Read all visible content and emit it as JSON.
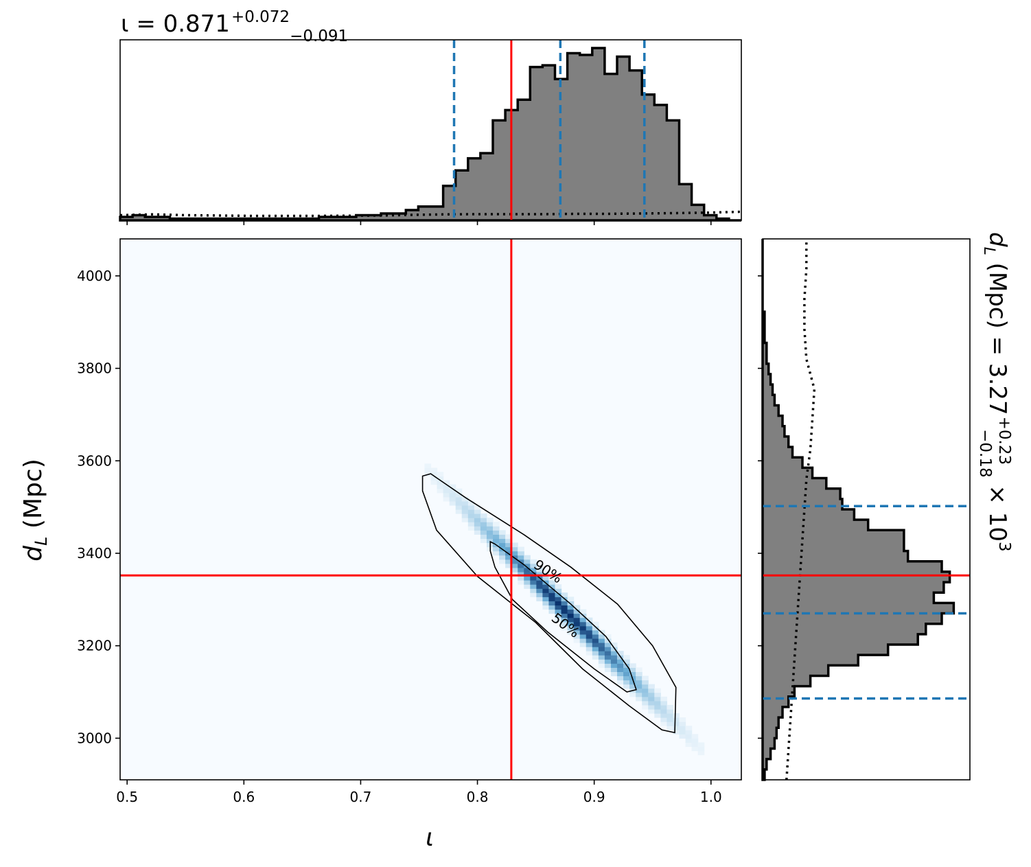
{
  "colors": {
    "truth": "#ff0000",
    "quantile": "#1f77b4",
    "hist_fill": "#808080",
    "hist_edge": "#000000",
    "density_low": "#f7fbff",
    "density_high": "#08306b"
  },
  "titles": {
    "iota": {
      "prefix": "ι = 0.871",
      "sup": "+0.072",
      "sub": "−0.091"
    },
    "dL": {
      "prefix": "d",
      "prefix_sub": "L",
      "mid": " (Mpc) = 3.27",
      "sup": "+0.23",
      "sub": "−0.18",
      "times": " × 10",
      "exp": "3"
    }
  },
  "axes": {
    "xlabel": "ι",
    "ylabel_main": "d",
    "ylabel_sub": "L",
    "ylabel_unit": " (Mpc)"
  },
  "contour_labels": {
    "c90": "90%",
    "c50": "50%"
  },
  "chart_data": [
    {
      "type": "histogram",
      "panel": "top-marginal",
      "title": "ι = 0.871 (+0.072 / −0.091)",
      "xlim": [
        0.494,
        1.026
      ],
      "bin_edges_start": 0.494,
      "bin_width": 0.01064,
      "counts": [
        0.02,
        0.03,
        0.02,
        0.02,
        0.01,
        0.01,
        0.01,
        0.01,
        0.01,
        0.01,
        0.01,
        0.01,
        0.01,
        0.01,
        0.01,
        0.01,
        0.02,
        0.02,
        0.02,
        0.03,
        0.03,
        0.04,
        0.04,
        0.06,
        0.08,
        0.08,
        0.2,
        0.29,
        0.36,
        0.39,
        0.58,
        0.64,
        0.7,
        0.89,
        0.9,
        0.82,
        0.97,
        0.96,
        1.0,
        0.85,
        0.95,
        0.87,
        0.73,
        0.67,
        0.58,
        0.21,
        0.09,
        0.03,
        0.01,
        0.0
      ],
      "kde_prior_dotted": [
        0.03,
        0.035,
        0.03,
        0.028,
        0.026,
        0.026,
        0.026,
        0.027,
        0.028,
        0.032,
        0.035,
        0.036,
        0.036,
        0.036,
        0.038,
        0.038,
        0.04,
        0.042,
        0.045,
        0.05
      ],
      "truth": 0.829,
      "quantiles": [
        0.78,
        0.871,
        0.943
      ]
    },
    {
      "type": "heatmap",
      "panel": "joint",
      "xlabel": "ι",
      "ylabel": "d_L (Mpc)",
      "xlim": [
        0.494,
        1.026
      ],
      "ylim": [
        2910,
        4080
      ],
      "xticks": [
        0.5,
        0.6,
        0.7,
        0.8,
        0.9,
        1.0
      ],
      "xtick_labels": [
        "0.5",
        "0.6",
        "0.7",
        "0.8",
        "0.9",
        "1.0"
      ],
      "yticks": [
        3000,
        3200,
        3400,
        3600,
        3800,
        4000
      ],
      "ytick_labels": [
        "3000",
        "3200",
        "3400",
        "3600",
        "3800",
        "4000"
      ],
      "density_ridge": [
        [
          0.76,
          3560
        ],
        [
          0.87,
          3290
        ],
        [
          0.97,
          3020
        ]
      ],
      "contour_90": [
        [
          0.753,
          3567
        ],
        [
          0.76,
          3572
        ],
        [
          0.79,
          3520
        ],
        [
          0.84,
          3440
        ],
        [
          0.88,
          3370
        ],
        [
          0.92,
          3290
        ],
        [
          0.95,
          3200
        ],
        [
          0.97,
          3110
        ],
        [
          0.969,
          3012
        ],
        [
          0.958,
          3018
        ],
        [
          0.93,
          3070
        ],
        [
          0.89,
          3150
        ],
        [
          0.85,
          3250
        ],
        [
          0.8,
          3350
        ],
        [
          0.765,
          3450
        ],
        [
          0.753,
          3535
        ]
      ],
      "contour_50": [
        [
          0.811,
          3425
        ],
        [
          0.815,
          3420
        ],
        [
          0.84,
          3375
        ],
        [
          0.88,
          3290
        ],
        [
          0.91,
          3220
        ],
        [
          0.93,
          3150
        ],
        [
          0.936,
          3105
        ],
        [
          0.928,
          3100
        ],
        [
          0.9,
          3150
        ],
        [
          0.86,
          3230
        ],
        [
          0.83,
          3300
        ],
        [
          0.815,
          3370
        ],
        [
          0.811,
          3405
        ]
      ],
      "truth": {
        "x": 0.829,
        "y": 3352
      }
    },
    {
      "type": "histogram",
      "panel": "right-marginal",
      "orientation": "horizontal",
      "title": "d_L (Mpc) = 3.27 (+0.23 / −0.18) × 10^3",
      "ylim": [
        2910,
        4080
      ],
      "bin_edges_start": 2910,
      "bin_width": 22.5,
      "counts": [
        0.01,
        0.02,
        0.04,
        0.06,
        0.07,
        0.08,
        0.1,
        0.13,
        0.16,
        0.24,
        0.33,
        0.48,
        0.63,
        0.78,
        0.82,
        0.9,
        0.96,
        0.86,
        0.91,
        0.94,
        0.9,
        0.73,
        0.71,
        0.71,
        0.53,
        0.46,
        0.4,
        0.39,
        0.32,
        0.25,
        0.2,
        0.15,
        0.13,
        0.11,
        0.1,
        0.08,
        0.06,
        0.05,
        0.04,
        0.03,
        0.02,
        0.02,
        0.01,
        0.01,
        0.01,
        0.0,
        0.0,
        0.0,
        0.0,
        0.0,
        0.0,
        0.0
      ],
      "kde_prior_dotted": [
        0.12,
        0.13,
        0.14,
        0.15,
        0.16,
        0.17,
        0.18,
        0.19,
        0.2,
        0.21,
        0.22,
        0.24,
        0.25,
        0.26,
        0.22,
        0.21,
        0.21,
        0.22,
        0.22
      ],
      "truth": 3352,
      "quantiles": [
        3086,
        3270,
        3502
      ]
    }
  ]
}
